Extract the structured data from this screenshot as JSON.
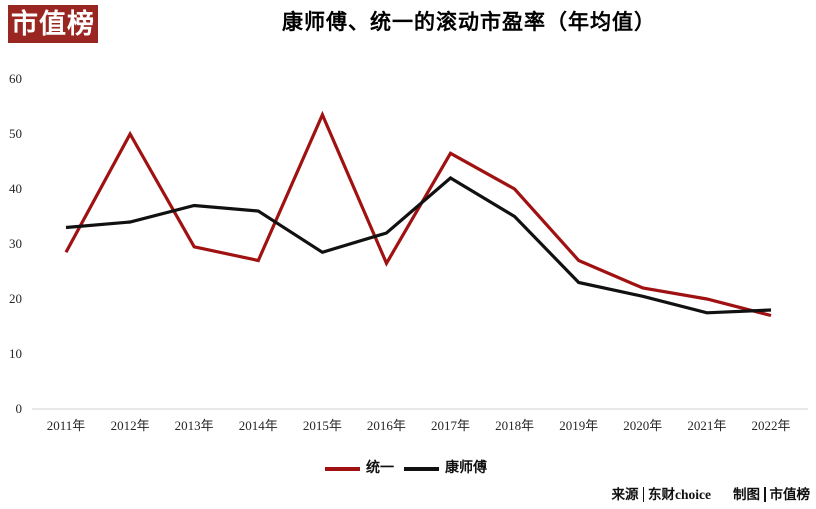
{
  "logo": {
    "text": "市值榜"
  },
  "colors": {
    "brand_red": "#992621",
    "line_red": "#A01212",
    "line_black": "#111111",
    "axis_gray": "#D9D9D9"
  },
  "chart_data": {
    "type": "line",
    "title": "康师傅、统一的滚动市盈率（年均值）",
    "categories": [
      "2011年",
      "2012年",
      "2013年",
      "2014年",
      "2015年",
      "2016年",
      "2017年",
      "2018年",
      "2019年",
      "2020年",
      "2021年",
      "2022年"
    ],
    "series": [
      {
        "name": "统一",
        "color": "#A01212",
        "values": [
          28.5,
          50,
          29.5,
          27,
          53.5,
          26.5,
          46.5,
          40,
          27,
          22,
          20,
          17
        ]
      },
      {
        "name": "康师傅",
        "color": "#111111",
        "values": [
          33,
          34,
          37,
          36,
          28.5,
          32,
          42,
          35,
          23,
          20.5,
          17.5,
          18
        ]
      }
    ],
    "y_ticks": [
      0,
      10,
      20,
      30,
      40,
      50,
      60
    ],
    "ylim": [
      0,
      60
    ],
    "xlabel": "",
    "ylabel": "",
    "grid": false,
    "legend_position": "bottom"
  },
  "footer": {
    "source_label": "来源",
    "source_value": "东财choice",
    "credit_label": "制图",
    "credit_value": "市值榜"
  }
}
